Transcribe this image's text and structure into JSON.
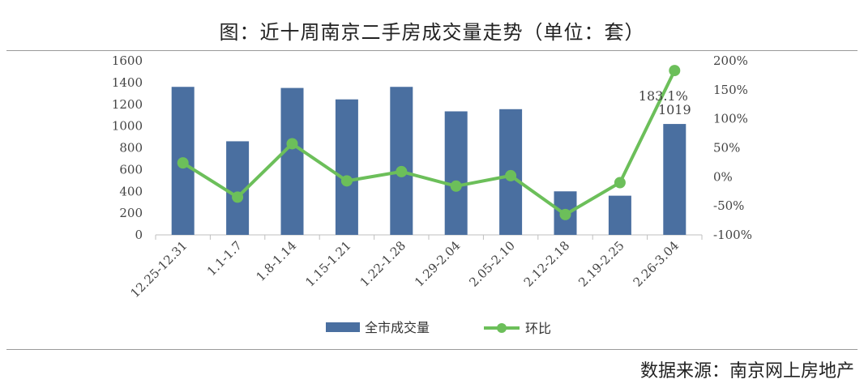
{
  "header": {
    "title": "图：近十周南京二手房成交量走势（单位：套）"
  },
  "footer": {
    "source": "数据来源：南京网上房地产"
  },
  "colors": {
    "bar": "#4a6fa0",
    "line": "#6cbf5a",
    "axis": "#bfbfbf",
    "text": "#444444"
  },
  "chart_data": {
    "type": "bar",
    "title": "图：近十周南京二手房成交量走势（单位：套）",
    "categories": [
      "12.25-12.31",
      "1.1-1.7",
      "1.8-1.14",
      "1.15-1.21",
      "1.22-1.28",
      "1.29-2.04",
      "2.05-2.10",
      "2.12-2.18",
      "2.19-2.25",
      "2.26-3.04"
    ],
    "series": [
      {
        "name": "全市成交量",
        "type": "bar",
        "axis": "left",
        "values": [
          1360,
          860,
          1350,
          1245,
          1360,
          1135,
          1155,
          400,
          360,
          1019
        ]
      },
      {
        "name": "环比",
        "type": "line",
        "axis": "right",
        "unit": "%",
        "values": [
          24,
          -35,
          57,
          -7,
          9,
          -16,
          2,
          -65,
          -10,
          183.1
        ]
      }
    ],
    "left_axis": {
      "min": 0,
      "max": 1600,
      "step": 200,
      "ticks": [
        "0",
        "200",
        "400",
        "600",
        "800",
        "1000",
        "1200",
        "1400",
        "1600"
      ]
    },
    "right_axis": {
      "min": -100,
      "max": 200,
      "step": 50,
      "ticks": [
        "-100%",
        "-50%",
        "0%",
        "50%",
        "100%",
        "150%",
        "200%"
      ]
    },
    "annotations": [
      {
        "category": "2.26-3.04",
        "series": "环比",
        "text": "183.1%"
      },
      {
        "category": "2.26-3.04",
        "series": "全市成交量",
        "text": "1019"
      }
    ],
    "legend": {
      "position": "bottom",
      "items": [
        "全市成交量",
        "环比"
      ]
    },
    "grid": false
  }
}
